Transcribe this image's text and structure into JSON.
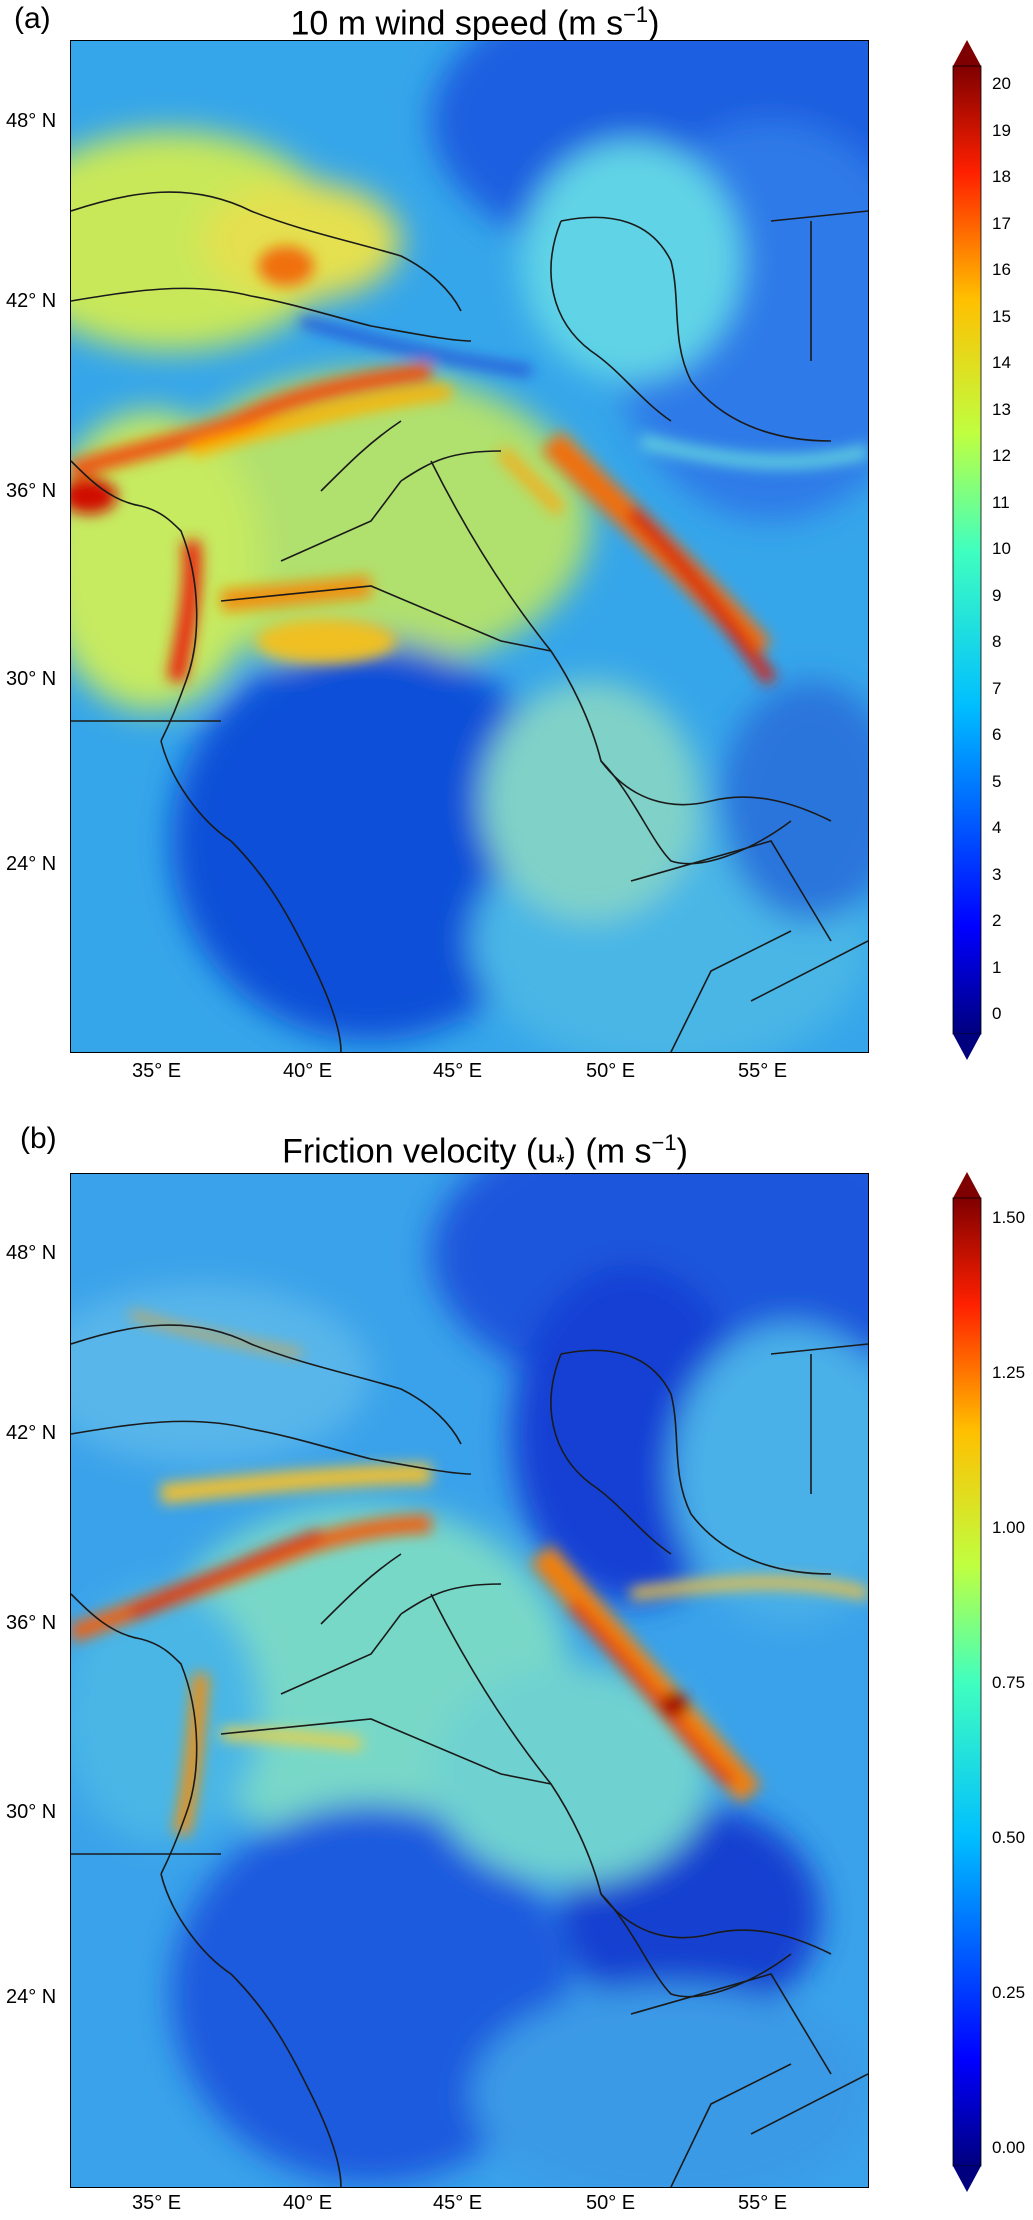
{
  "panels": [
    {
      "label": "(a)",
      "title_text": "10 m wind speed (m s",
      "title_sup": "−1",
      "title_close": ")",
      "lat_labels": [
        "48° N",
        "42° N",
        "36° N",
        "30° N",
        "24° N"
      ],
      "lon_labels": [
        "35° E",
        "40° E",
        "45° E",
        "50° E",
        "55° E"
      ],
      "colorbar_ticks": [
        "20",
        "19",
        "18",
        "17",
        "16",
        "15",
        "14",
        "13",
        "12",
        "11",
        "10",
        "9",
        "8",
        "7",
        "6",
        "5",
        "4",
        "3",
        "2",
        "1",
        "0"
      ]
    },
    {
      "label": "(b)",
      "title_text": "Friction velocity (u",
      "title_sub": "*",
      "title_mid": ") (m s",
      "title_sup": "−1",
      "title_close": ")",
      "lat_labels": [
        "48° N",
        "42° N",
        "36° N",
        "30° N",
        "24° N"
      ],
      "lon_labels": [
        "35° E",
        "40° E",
        "45° E",
        "50° E",
        "55° E"
      ],
      "colorbar_ticks": [
        "1.50",
        "1.25",
        "1.00",
        "0.75",
        "0.50",
        "0.25",
        "0.00"
      ]
    }
  ],
  "colormap": "jet",
  "colors": {
    "frame": "#000000",
    "coastline": "#1a1a1a"
  }
}
